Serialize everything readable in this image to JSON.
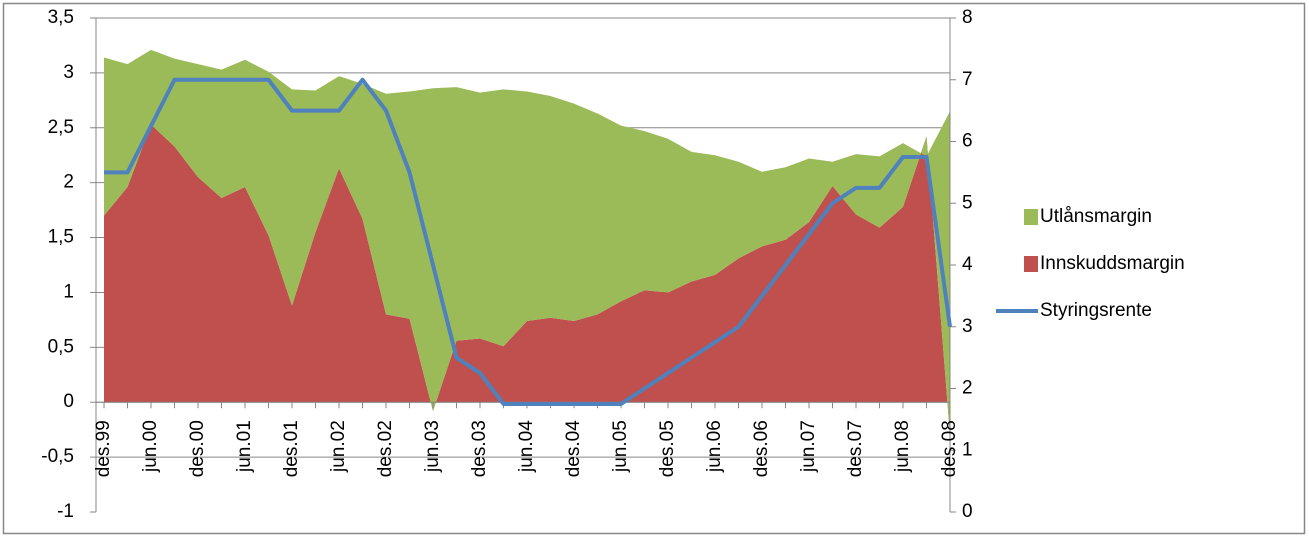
{
  "chart_data": {
    "type": "stacked-area-line",
    "categories": [
      "des.99",
      null,
      "jun.00",
      null,
      "des.00",
      null,
      "jun.01",
      null,
      "des.01",
      null,
      "jun.02",
      null,
      "des.02",
      null,
      "jun.03",
      null,
      "des.03",
      null,
      "jun.04",
      null,
      "des.04",
      null,
      "jun.05",
      null,
      "des.05",
      null,
      "jun.06",
      null,
      "des.06",
      null,
      "jun.07",
      null,
      "des.07",
      null,
      "jun.08",
      null,
      "des.08"
    ],
    "series": [
      {
        "name": "Innskuddsmargin",
        "type": "area",
        "color": "#c0504d",
        "values": [
          1.7,
          1.96,
          2.53,
          2.33,
          2.05,
          1.86,
          1.96,
          1.52,
          0.88,
          1.55,
          2.13,
          1.67,
          0.8,
          0.76,
          -0.08,
          0.56,
          0.58,
          0.51,
          0.74,
          0.77,
          0.74,
          0.8,
          0.92,
          1.02,
          1.0,
          1.1,
          1.16,
          1.31,
          1.42,
          1.48,
          1.64,
          1.97,
          1.71,
          1.59,
          1.78,
          2.42,
          -0.3
        ]
      },
      {
        "name": "Utlånsmargin",
        "type": "area",
        "color": "#9bbb59",
        "values": [
          1.44,
          1.12,
          0.68,
          0.8,
          1.03,
          1.17,
          1.16,
          1.49,
          1.97,
          1.29,
          0.84,
          1.23,
          2.01,
          2.07,
          2.94,
          2.31,
          2.24,
          2.34,
          2.09,
          2.02,
          1.98,
          1.83,
          1.6,
          1.45,
          1.4,
          1.18,
          1.09,
          0.88,
          0.68,
          0.66,
          0.58,
          0.22,
          0.55,
          0.65,
          0.58,
          -0.18,
          2.95
        ]
      },
      {
        "name": "Styringsrente",
        "type": "line",
        "axis": "y2",
        "color": "#4f81bd",
        "values": [
          5.5,
          5.5,
          6.25,
          7,
          7,
          7,
          7,
          7,
          6.5,
          6.5,
          6.5,
          7,
          6.5,
          5.5,
          4.0,
          2.5,
          2.25,
          1.75,
          1.75,
          1.75,
          1.75,
          1.75,
          1.75,
          2.0,
          2.25,
          2.5,
          2.75,
          3.0,
          3.5,
          4.0,
          4.5,
          5.0,
          5.25,
          5.25,
          5.75,
          5.75,
          3.0
        ]
      }
    ],
    "ylim": [
      -1,
      3.5
    ],
    "yticks": [
      {
        "value": -1,
        "label": "-1"
      },
      {
        "value": -0.5,
        "label": "-0,5"
      },
      0,
      {
        "value": 0.5,
        "label": "0,5"
      },
      1,
      {
        "value": 1.5,
        "label": "1,5"
      },
      2,
      {
        "value": 2.5,
        "label": "2,5"
      },
      3,
      {
        "value": 3.5,
        "label": "3,5"
      }
    ],
    "y2lim": [
      0,
      8
    ],
    "y2ticks": [
      0,
      1,
      2,
      3,
      4,
      5,
      6,
      7,
      8
    ],
    "grid": true,
    "legend": "right"
  }
}
